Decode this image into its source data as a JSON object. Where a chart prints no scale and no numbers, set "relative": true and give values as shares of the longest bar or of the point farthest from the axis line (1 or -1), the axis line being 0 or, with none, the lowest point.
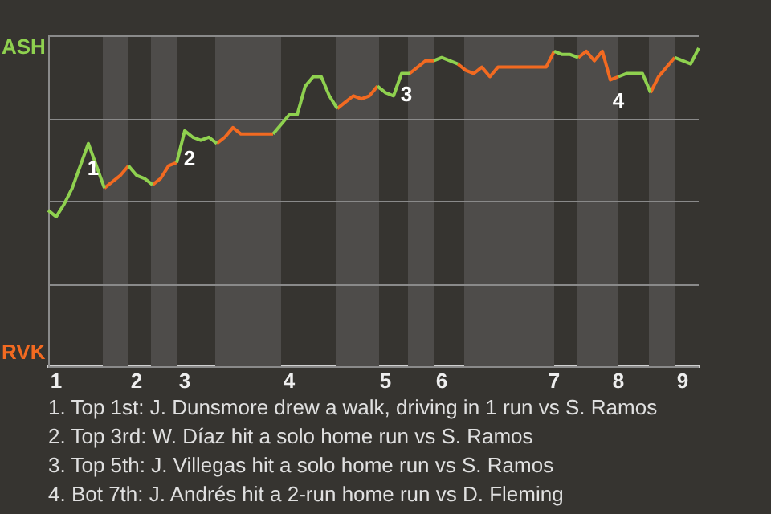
{
  "chart_data": {
    "type": "line",
    "relative": true,
    "grid": "y",
    "legend": "left",
    "marker": "none",
    "line_style": "solid",
    "categories": [
      null,
      "1",
      null,
      null,
      null,
      null,
      null,
      null,
      null,
      null,
      null,
      "2",
      null,
      null,
      null,
      null,
      null,
      "3",
      null,
      null,
      null,
      null,
      null,
      null,
      null,
      null,
      null,
      null,
      null,
      null,
      "4",
      null,
      null,
      null,
      null,
      null,
      null,
      null,
      null,
      null,
      null,
      null,
      "5",
      null,
      null,
      null,
      null,
      null,
      null,
      "6",
      null,
      null,
      null,
      null,
      null,
      null,
      null,
      null,
      null,
      null,
      null,
      null,
      null,
      "7",
      null,
      null,
      null,
      null,
      null,
      null,
      null,
      "8",
      null,
      null,
      null,
      null,
      null,
      null,
      null,
      "9",
      null,
      null
    ],
    "series": [
      {
        "name": "ASH",
        "color": "#8fd14f",
        "values": [
          0.49,
          0.47,
          0.51,
          0.56,
          0.63,
          0.7,
          0.63,
          0.56,
          null,
          null,
          0.63,
          0.6,
          0.59,
          0.57,
          null,
          null,
          0.64,
          0.74,
          0.72,
          0.71,
          0.72,
          0.7,
          null,
          null,
          null,
          null,
          null,
          null,
          0.73,
          0.76,
          0.79,
          0.79,
          0.88,
          0.91,
          0.91,
          0.85,
          0.81,
          null,
          null,
          null,
          null,
          0.88,
          0.86,
          0.85,
          0.92,
          0.92,
          null,
          null,
          0.96,
          0.97,
          0.96,
          0.95,
          null,
          null,
          null,
          null,
          null,
          null,
          null,
          null,
          null,
          null,
          null,
          0.99,
          0.98,
          0.98,
          0.97,
          null,
          null,
          null,
          null,
          0.91,
          0.92,
          0.92,
          0.92,
          0.86,
          null,
          null,
          0.97,
          0.96,
          0.95,
          1
        ]
      },
      {
        "name": "RVK",
        "color": "#f26a21",
        "values": [
          null,
          null,
          null,
          null,
          null,
          null,
          null,
          0.56,
          0.58,
          0.6,
          0.63,
          null,
          null,
          0.57,
          0.59,
          0.63,
          0.64,
          null,
          null,
          null,
          null,
          0.7,
          0.72,
          0.75,
          0.73,
          0.73,
          0.73,
          0.73,
          0.73,
          null,
          null,
          null,
          null,
          null,
          null,
          null,
          0.81,
          0.83,
          0.85,
          0.84,
          0.85,
          0.88,
          null,
          null,
          null,
          0.92,
          0.94,
          0.96,
          0.96,
          null,
          null,
          0.95,
          0.93,
          0.92,
          0.94,
          0.91,
          0.94,
          0.94,
          0.94,
          0.94,
          0.94,
          0.94,
          0.94,
          0.99,
          null,
          null,
          0.97,
          0.99,
          0.96,
          0.99,
          0.9,
          0.91,
          null,
          null,
          null,
          0.86,
          0.91,
          0.94,
          0.97,
          null,
          null,
          null
        ]
      }
    ],
    "annotations": [
      "1",
      "2",
      "3",
      "4",
      "1. Top 1st: J. Dunsmore drew a walk, driving in 1 run vs S. Ramos",
      "2. Top 3rd: W. Díaz hit a solo home run vs S. Ramos",
      "3. Top 5th: J. Villegas hit a solo home run vs S. Ramos",
      "4. Bot 7th: J. Andrés hit a 2-run home run vs D. Fleming"
    ]
  }
}
